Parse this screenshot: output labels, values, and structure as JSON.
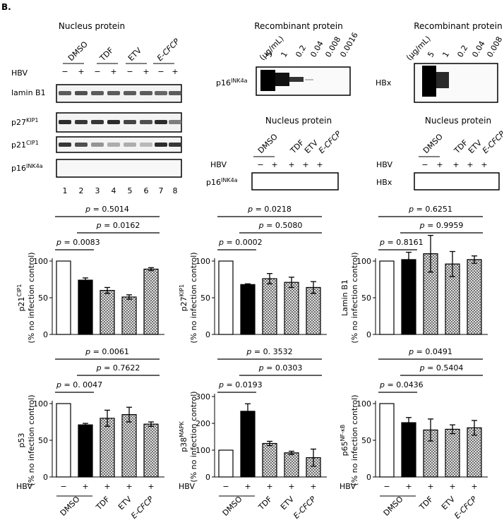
{
  "panel_label": "B.",
  "blot_left": {
    "title": "Nucleus protein",
    "treatments": [
      "DMSO",
      "TDF",
      "ETV",
      "E-CFCP"
    ],
    "hbv_label": "HBV",
    "hbv_signs": [
      "−",
      "+",
      "−",
      "+",
      "−",
      "+",
      "−",
      "+"
    ],
    "rows": [
      "lamin B1",
      "p27KIP1",
      "p21CIP1",
      "p16INK4a"
    ],
    "lanes": [
      "1",
      "2",
      "3",
      "4",
      "5",
      "6",
      "7",
      "8"
    ]
  },
  "recombinant_p16": {
    "title": "Recombinant protein",
    "unit_label": "(μg/mL)",
    "concentrations": [
      "5",
      "1",
      "0.2",
      "0.04",
      "0.008",
      "0.0016"
    ],
    "row_label": "p16INK4a"
  },
  "recombinant_hbx": {
    "title": "Recombinant protein",
    "unit_label": "(μg/mL)",
    "concentrations": [
      "5",
      "1",
      "0.2",
      "0.04",
      "0.008"
    ],
    "row_label": "HBx"
  },
  "nucleus_p16": {
    "title": "Nucleus protein",
    "treatments": [
      "DMSO",
      "TDF",
      "ETV",
      "E-CFCP"
    ],
    "hbv_label": "HBV",
    "hbv_signs": [
      "−",
      "+",
      "+",
      "+",
      "+"
    ],
    "row_label": "p16INK4a"
  },
  "nucleus_hbx": {
    "title": "Nucleus protein",
    "treatments": [
      "DMSO",
      "TDF",
      "ETV",
      "E-CFCP"
    ],
    "hbv_label": "HBV",
    "hbv_signs": [
      "−",
      "+",
      "+",
      "+",
      "+"
    ],
    "row_label": "HBx"
  },
  "x_axis": {
    "hbv_label": "HBV",
    "hbv_signs": [
      "−",
      "+",
      "+",
      "+",
      "+"
    ],
    "treatment_labels": [
      "DMSO",
      "TDF",
      "ETV",
      "E-CFCP"
    ]
  },
  "chart_data": [
    {
      "type": "bar",
      "ylabel": "p21CIP1",
      "ylabel2": "(% no infection control)",
      "ylim": [
        0,
        100
      ],
      "yticks": [
        0,
        50,
        100
      ],
      "values": [
        100,
        74,
        60,
        51,
        89
      ],
      "errors": [
        0,
        3,
        4,
        3,
        2
      ],
      "fills": [
        "white",
        "black",
        "hatch",
        "hatch",
        "hatch"
      ],
      "pvalues": [
        "p = 0.5014",
        "p = 0.0162",
        "p = 0.0083"
      ]
    },
    {
      "type": "bar",
      "ylabel": "p27KIP1",
      "ylabel2": "(% no infection control)",
      "ylim": [
        0,
        100
      ],
      "yticks": [
        0,
        50,
        100
      ],
      "values": [
        100,
        68,
        76,
        71,
        64
      ],
      "errors": [
        0,
        1,
        7,
        7,
        8
      ],
      "fills": [
        "white",
        "black",
        "hatch",
        "hatch",
        "hatch"
      ],
      "pvalues": [
        "p = 0.0218",
        "p = 0.5080",
        "p = 0.0002"
      ]
    },
    {
      "type": "bar",
      "ylabel": "Lamin B1",
      "ylabel2": "(% no infection control)",
      "ylim": [
        0,
        100
      ],
      "yticks": [
        0,
        50,
        100
      ],
      "values": [
        100,
        102,
        110,
        96,
        102
      ],
      "errors": [
        0,
        10,
        25,
        17,
        5
      ],
      "fills": [
        "white",
        "black",
        "hatch",
        "hatch",
        "hatch"
      ],
      "pvalues": [
        "p = 0.6251",
        "p = 0.9959",
        "p = 0.8161"
      ]
    },
    {
      "type": "bar",
      "ylabel": "p53",
      "ylabel2": "(% no infection control)",
      "ylim": [
        0,
        100
      ],
      "yticks": [
        0,
        50,
        100
      ],
      "values": [
        100,
        71,
        80,
        85,
        72
      ],
      "errors": [
        0,
        2,
        11,
        10,
        3
      ],
      "fills": [
        "white",
        "black",
        "hatch",
        "hatch",
        "hatch"
      ],
      "pvalues": [
        "p = 0.0061",
        "p = 0.7622",
        "p = 0. 0047"
      ]
    },
    {
      "type": "bar",
      "ylabel": "p38MAPK",
      "ylabel2": "(% no infection control)",
      "ylim": [
        0,
        300
      ],
      "yticks": [
        0,
        100,
        200,
        300
      ],
      "values": [
        100,
        245,
        125,
        90,
        72
      ],
      "errors": [
        0,
        28,
        8,
        6,
        32
      ],
      "fills": [
        "white",
        "black",
        "hatch",
        "hatch",
        "hatch"
      ],
      "pvalues": [
        "p = 0. 3532",
        "p = 0.0303",
        "p = 0.0193"
      ]
    },
    {
      "type": "bar",
      "ylabel": "p65NF-κB",
      "ylabel2": "(% no infection control)",
      "ylim": [
        0,
        100
      ],
      "yticks": [
        0,
        50,
        100
      ],
      "values": [
        100,
        74,
        64,
        65,
        67
      ],
      "errors": [
        0,
        7,
        15,
        6,
        10
      ],
      "fills": [
        "white",
        "black",
        "hatch",
        "hatch",
        "hatch"
      ],
      "pvalues": [
        "p = 0.0491",
        "p = 0.5404",
        "p = 0.0436"
      ]
    }
  ]
}
